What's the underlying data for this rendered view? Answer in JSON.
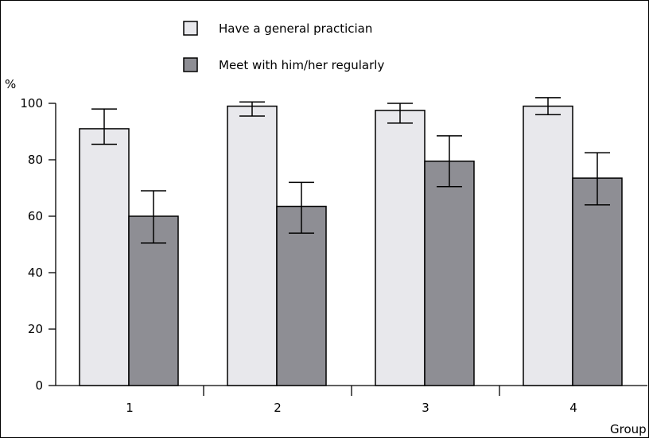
{
  "chart_data": {
    "type": "bar",
    "title": "",
    "ylabel": "%",
    "xlabel": "Group",
    "ylim": [
      0,
      100
    ],
    "yticks": [
      "0",
      "20",
      "40",
      "60",
      "80",
      "100"
    ],
    "categories": [
      "1",
      "2",
      "3",
      "4"
    ],
    "legend_position": "top",
    "series": [
      {
        "name": "Have a general practician",
        "color": "#e8e8ec",
        "values": [
          91,
          99,
          97.5,
          99
        ],
        "error_low": [
          85.5,
          95.5,
          93,
          96
        ],
        "error_high": [
          98,
          100.5,
          100,
          102
        ]
      },
      {
        "name": "Meet with him/her regularly",
        "color": "#8e8e94",
        "values": [
          60,
          63.5,
          79.5,
          73.5
        ],
        "error_low": [
          50.5,
          54,
          70.5,
          64
        ],
        "error_high": [
          69,
          72,
          88.5,
          82.5
        ]
      }
    ]
  }
}
